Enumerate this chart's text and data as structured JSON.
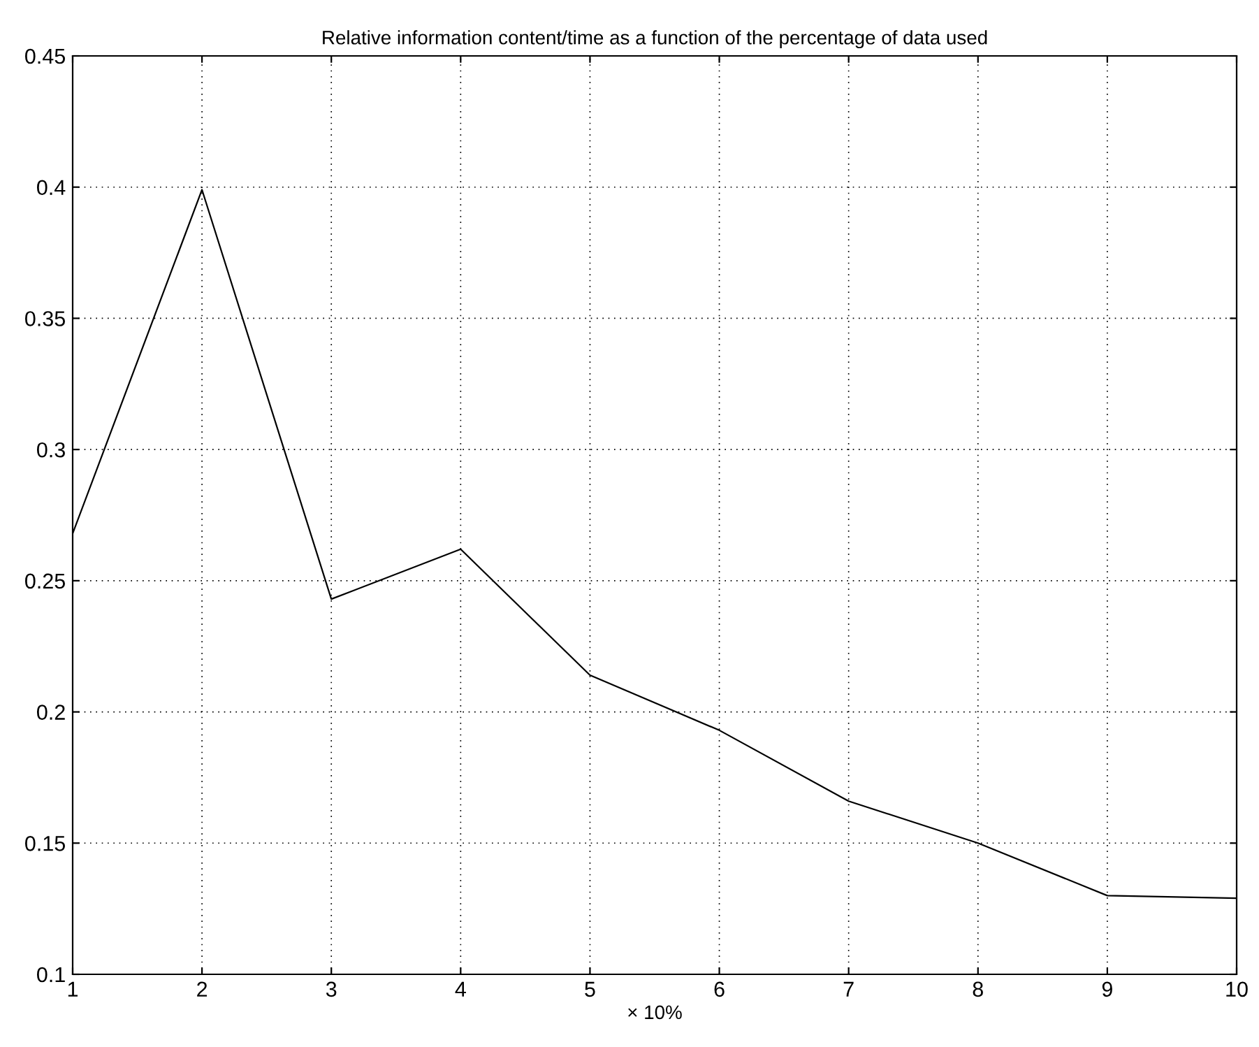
{
  "chart_data": {
    "type": "line",
    "title": "Relative information content/time as a function of the percentage of data used",
    "xlabel": "× 10%",
    "x": [
      1,
      2,
      3,
      4,
      5,
      6,
      7,
      8,
      9,
      10
    ],
    "series": [
      {
        "color": "#000000",
        "values": [
          0.268,
          0.399,
          0.243,
          0.262,
          0.214,
          0.193,
          0.166,
          0.15,
          0.13,
          0.129
        ]
      }
    ],
    "xlim": [
      1,
      10
    ],
    "xticks": [
      1,
      2,
      3,
      4,
      5,
      6,
      7,
      8,
      9,
      10
    ],
    "ylim": [
      0.1,
      0.45
    ],
    "yticks": [
      0.1,
      0.15,
      0.2,
      0.25,
      0.3,
      0.35,
      0.4,
      0.45
    ],
    "grid": true,
    "line_style": "solid",
    "marker": "none"
  }
}
